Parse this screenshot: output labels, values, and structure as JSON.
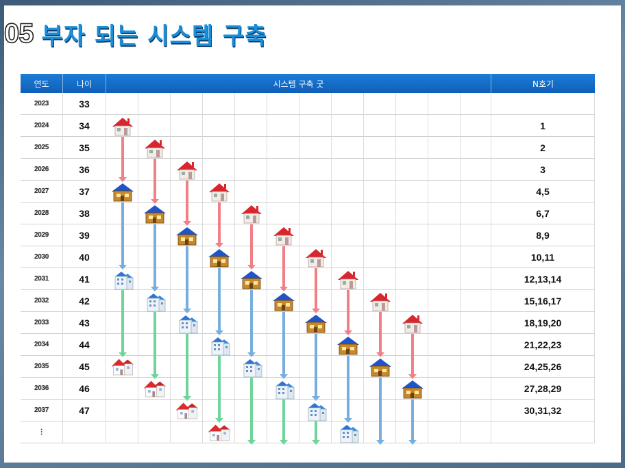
{
  "title": {
    "number": "05",
    "text": "부자 되는 시스템 구축"
  },
  "table": {
    "headers": {
      "year": "연도",
      "age": "나이",
      "system": "시스템 구축 굿",
      "nth": "N호기"
    },
    "rows": [
      {
        "year": "2023",
        "age": "33",
        "nth": ""
      },
      {
        "year": "2024",
        "age": "34",
        "nth": "1"
      },
      {
        "year": "2025",
        "age": "35",
        "nth": "2"
      },
      {
        "year": "2026",
        "age": "36",
        "nth": "3"
      },
      {
        "year": "2027",
        "age": "37",
        "nth": "4,5"
      },
      {
        "year": "2028",
        "age": "38",
        "nth": "6,7"
      },
      {
        "year": "2029",
        "age": "39",
        "nth": "8,9"
      },
      {
        "year": "2030",
        "age": "40",
        "nth": "10,11"
      },
      {
        "year": "2031",
        "age": "41",
        "nth": "12,13,14"
      },
      {
        "year": "2032",
        "age": "42",
        "nth": "15,16,17"
      },
      {
        "year": "2033",
        "age": "43",
        "nth": "18,19,20"
      },
      {
        "year": "2034",
        "age": "44",
        "nth": "21,22,23"
      },
      {
        "year": "2035",
        "age": "45",
        "nth": "24,25,26"
      },
      {
        "year": "2036",
        "age": "46",
        "nth": "27,28,29"
      },
      {
        "year": "2037",
        "age": "47",
        "nth": "30,31,32"
      },
      {
        "year": "⋮",
        "age": "",
        "nth": ""
      }
    ]
  },
  "colors": {
    "header": "#1565c0",
    "red_arrow": "#f07f86",
    "blue_arrow": "#78aedd",
    "green_arrow": "#6fd49a"
  },
  "icons": [
    "red-roof-house-icon",
    "blue-roof-house-icon",
    "apartment-building-icon",
    "large-red-roof-house-icon"
  ]
}
